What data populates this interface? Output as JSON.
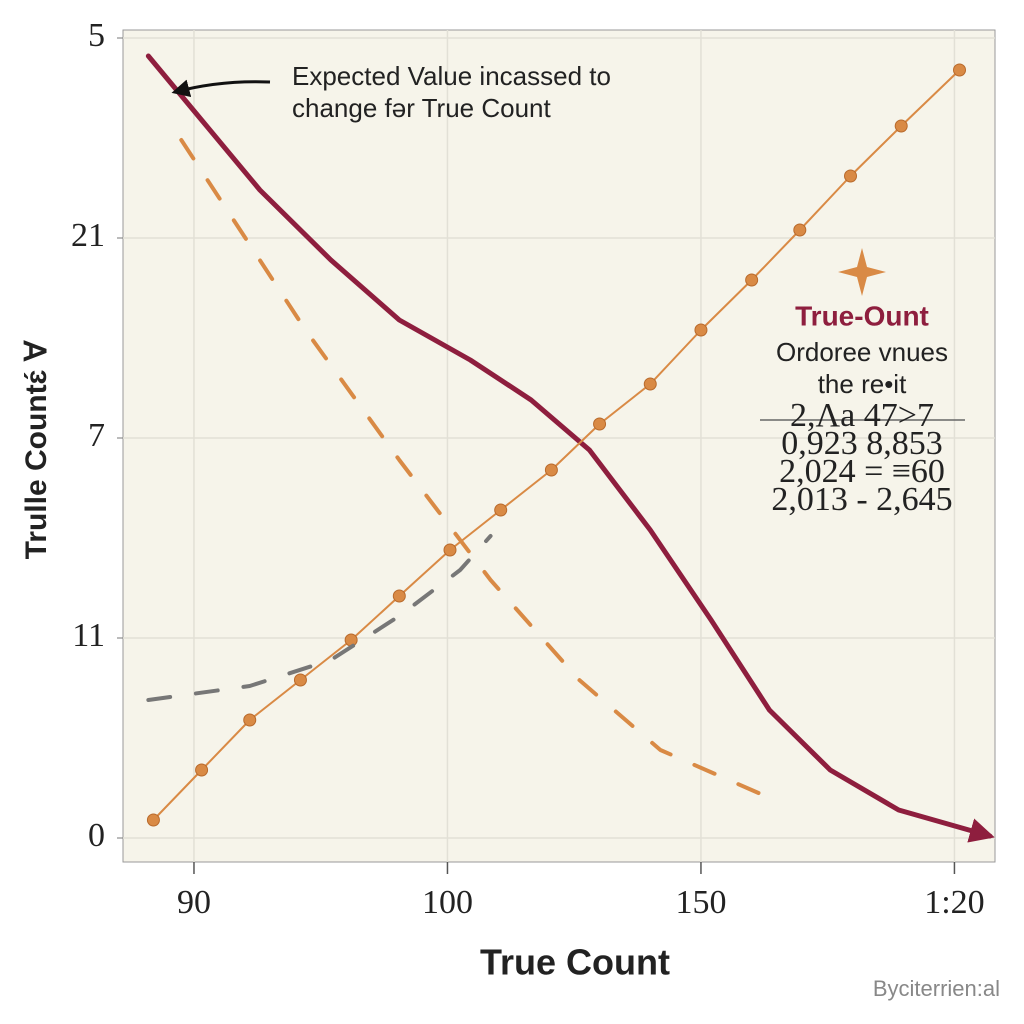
{
  "chart_data": {
    "type": "line",
    "xlabel": "True Count",
    "ylabel": "Trulle Countɛ́ Ɐ",
    "xlim": [
      -0.28,
      3.16
    ],
    "ylim": [
      -0.12,
      4.04
    ],
    "xticks": [
      {
        "value": 0,
        "label": "90"
      },
      {
        "value": 1,
        "label": "100"
      },
      {
        "value": 2,
        "label": "150"
      },
      {
        "value": 3,
        "label": "1:20"
      }
    ],
    "yticks": [
      0,
      {
        "value": 1,
        "label": "11"
      },
      {
        "value": 2,
        "label": "7"
      },
      {
        "value": 3,
        "label": "21"
      },
      {
        "value": 4,
        "label": "5"
      }
    ],
    "grid": true,
    "series": [
      {
        "color": "#8e1e3e",
        "style": "solid",
        "markers": false,
        "arrow": true,
        "x": [
          -0.18,
          0.03,
          0.26,
          0.54,
          0.81,
          1.09,
          1.33,
          1.56,
          1.8,
          2.04,
          2.27,
          2.51,
          2.78,
          3.14
        ],
        "values": [
          3.91,
          3.59,
          3.24,
          2.89,
          2.59,
          2.39,
          2.19,
          1.94,
          1.54,
          1.09,
          0.64,
          0.34,
          0.14,
          0.01
        ]
      },
      {
        "color": "#d98a45",
        "style": "solid",
        "markers": true,
        "arrow": false,
        "x": [
          -0.16,
          0.03,
          0.22,
          0.42,
          0.62,
          0.81,
          1.01,
          1.21,
          1.41,
          1.6,
          1.8,
          2.0,
          2.2,
          2.39,
          2.59,
          2.79,
          3.02
        ],
        "values": [
          0.09,
          0.34,
          0.59,
          0.79,
          0.99,
          1.21,
          1.44,
          1.64,
          1.84,
          2.07,
          2.27,
          2.54,
          2.79,
          3.04,
          3.31,
          3.56,
          3.84
        ]
      },
      {
        "color": "#d98a45",
        "style": "dashed",
        "markers": false,
        "arrow": false,
        "x": [
          -0.05,
          0.44,
          0.81,
          1.17,
          1.52,
          1.84,
          2.29
        ],
        "values": [
          3.49,
          2.54,
          1.89,
          1.29,
          0.79,
          0.44,
          0.19
        ]
      },
      {
        "color": "#777777",
        "style": "dashed",
        "markers": false,
        "arrow": false,
        "x": [
          -0.18,
          0.22,
          0.54,
          0.81,
          1.05,
          1.17
        ],
        "values": [
          0.69,
          0.76,
          0.89,
          1.11,
          1.34,
          1.51
        ]
      }
    ],
    "annotation": {
      "lines": [
        "Expected Value incassed to",
        "change fər True Count"
      ]
    },
    "callout": {
      "title": "True-Ount",
      "lines": [
        "Ordoree vnues",
        "the re•it"
      ],
      "rows": [
        "2,Λa  47>7",
        "0,923  8,853",
        "2,024 = ≡60",
        "2,013 - 2,645"
      ]
    },
    "credit": "Byciterrien:al"
  }
}
